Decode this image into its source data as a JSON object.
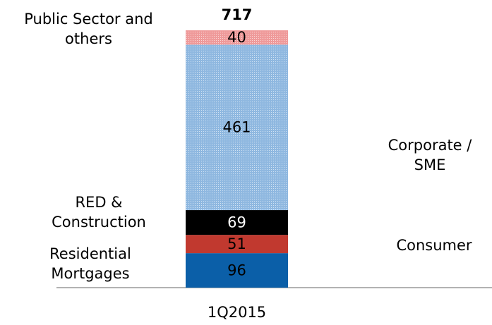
{
  "chart_data": {
    "type": "stacked_bar",
    "categories": [
      "1Q2015"
    ],
    "total": 717,
    "series": [
      {
        "name": "Residential Mortgages",
        "color": "#0b5fa8",
        "values": [
          96
        ]
      },
      {
        "name": "Consumer",
        "color": "#c1392f",
        "values": [
          51
        ]
      },
      {
        "name": "RED & Construction",
        "color": "#000000",
        "values": [
          69
        ]
      },
      {
        "name": "Corporate / SME",
        "color": "#8fb8e0",
        "values": [
          461
        ],
        "pattern": true
      },
      {
        "name": "Public Sector and others",
        "color": "#ef9a9a",
        "values": [
          40
        ],
        "pattern": true
      }
    ]
  }
}
